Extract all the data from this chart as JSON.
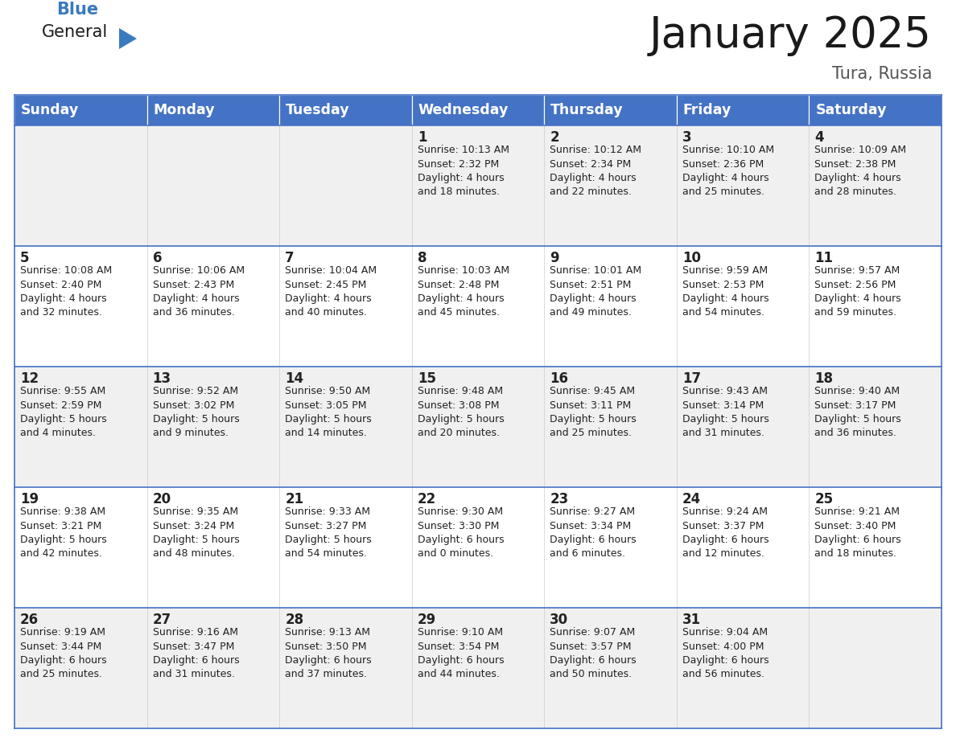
{
  "title": "January 2025",
  "subtitle": "Tura, Russia",
  "header_color": "#4472C4",
  "header_text_color": "#FFFFFF",
  "days_of_week": [
    "Sunday",
    "Monday",
    "Tuesday",
    "Wednesday",
    "Thursday",
    "Friday",
    "Saturday"
  ],
  "cell_bg_even": "#F0F0F0",
  "cell_bg_odd": "#FFFFFF",
  "cell_border_color": "#4472C4",
  "day_text_color": "#222222",
  "info_text_color": "#222222",
  "calendar": [
    [
      {
        "day": "",
        "sunrise": "",
        "sunset": "",
        "daylight": ""
      },
      {
        "day": "",
        "sunrise": "",
        "sunset": "",
        "daylight": ""
      },
      {
        "day": "",
        "sunrise": "",
        "sunset": "",
        "daylight": ""
      },
      {
        "day": "1",
        "sunrise": "10:13 AM",
        "sunset": "2:32 PM",
        "daylight": "4 hours and 18 minutes."
      },
      {
        "day": "2",
        "sunrise": "10:12 AM",
        "sunset": "2:34 PM",
        "daylight": "4 hours and 22 minutes."
      },
      {
        "day": "3",
        "sunrise": "10:10 AM",
        "sunset": "2:36 PM",
        "daylight": "4 hours and 25 minutes."
      },
      {
        "day": "4",
        "sunrise": "10:09 AM",
        "sunset": "2:38 PM",
        "daylight": "4 hours and 28 minutes."
      }
    ],
    [
      {
        "day": "5",
        "sunrise": "10:08 AM",
        "sunset": "2:40 PM",
        "daylight": "4 hours and 32 minutes."
      },
      {
        "day": "6",
        "sunrise": "10:06 AM",
        "sunset": "2:43 PM",
        "daylight": "4 hours and 36 minutes."
      },
      {
        "day": "7",
        "sunrise": "10:04 AM",
        "sunset": "2:45 PM",
        "daylight": "4 hours and 40 minutes."
      },
      {
        "day": "8",
        "sunrise": "10:03 AM",
        "sunset": "2:48 PM",
        "daylight": "4 hours and 45 minutes."
      },
      {
        "day": "9",
        "sunrise": "10:01 AM",
        "sunset": "2:51 PM",
        "daylight": "4 hours and 49 minutes."
      },
      {
        "day": "10",
        "sunrise": "9:59 AM",
        "sunset": "2:53 PM",
        "daylight": "4 hours and 54 minutes."
      },
      {
        "day": "11",
        "sunrise": "9:57 AM",
        "sunset": "2:56 PM",
        "daylight": "4 hours and 59 minutes."
      }
    ],
    [
      {
        "day": "12",
        "sunrise": "9:55 AM",
        "sunset": "2:59 PM",
        "daylight": "5 hours and 4 minutes."
      },
      {
        "day": "13",
        "sunrise": "9:52 AM",
        "sunset": "3:02 PM",
        "daylight": "5 hours and 9 minutes."
      },
      {
        "day": "14",
        "sunrise": "9:50 AM",
        "sunset": "3:05 PM",
        "daylight": "5 hours and 14 minutes."
      },
      {
        "day": "15",
        "sunrise": "9:48 AM",
        "sunset": "3:08 PM",
        "daylight": "5 hours and 20 minutes."
      },
      {
        "day": "16",
        "sunrise": "9:45 AM",
        "sunset": "3:11 PM",
        "daylight": "5 hours and 25 minutes."
      },
      {
        "day": "17",
        "sunrise": "9:43 AM",
        "sunset": "3:14 PM",
        "daylight": "5 hours and 31 minutes."
      },
      {
        "day": "18",
        "sunrise": "9:40 AM",
        "sunset": "3:17 PM",
        "daylight": "5 hours and 36 minutes."
      }
    ],
    [
      {
        "day": "19",
        "sunrise": "9:38 AM",
        "sunset": "3:21 PM",
        "daylight": "5 hours and 42 minutes."
      },
      {
        "day": "20",
        "sunrise": "9:35 AM",
        "sunset": "3:24 PM",
        "daylight": "5 hours and 48 minutes."
      },
      {
        "day": "21",
        "sunrise": "9:33 AM",
        "sunset": "3:27 PM",
        "daylight": "5 hours and 54 minutes."
      },
      {
        "day": "22",
        "sunrise": "9:30 AM",
        "sunset": "3:30 PM",
        "daylight": "6 hours and 0 minutes."
      },
      {
        "day": "23",
        "sunrise": "9:27 AM",
        "sunset": "3:34 PM",
        "daylight": "6 hours and 6 minutes."
      },
      {
        "day": "24",
        "sunrise": "9:24 AM",
        "sunset": "3:37 PM",
        "daylight": "6 hours and 12 minutes."
      },
      {
        "day": "25",
        "sunrise": "9:21 AM",
        "sunset": "3:40 PM",
        "daylight": "6 hours and 18 minutes."
      }
    ],
    [
      {
        "day": "26",
        "sunrise": "9:19 AM",
        "sunset": "3:44 PM",
        "daylight": "6 hours and 25 minutes."
      },
      {
        "day": "27",
        "sunrise": "9:16 AM",
        "sunset": "3:47 PM",
        "daylight": "6 hours and 31 minutes."
      },
      {
        "day": "28",
        "sunrise": "9:13 AM",
        "sunset": "3:50 PM",
        "daylight": "6 hours and 37 minutes."
      },
      {
        "day": "29",
        "sunrise": "9:10 AM",
        "sunset": "3:54 PM",
        "daylight": "6 hours and 44 minutes."
      },
      {
        "day": "30",
        "sunrise": "9:07 AM",
        "sunset": "3:57 PM",
        "daylight": "6 hours and 50 minutes."
      },
      {
        "day": "31",
        "sunrise": "9:04 AM",
        "sunset": "4:00 PM",
        "daylight": "6 hours and 56 minutes."
      },
      {
        "day": "",
        "sunrise": "",
        "sunset": "",
        "daylight": ""
      }
    ]
  ],
  "logo_general_color": "#1a1a1a",
  "logo_blue_color": "#3a7abf",
  "title_fontsize": 38,
  "subtitle_fontsize": 15,
  "header_fontsize": 12.5,
  "day_num_fontsize": 12,
  "info_fontsize": 9.0
}
